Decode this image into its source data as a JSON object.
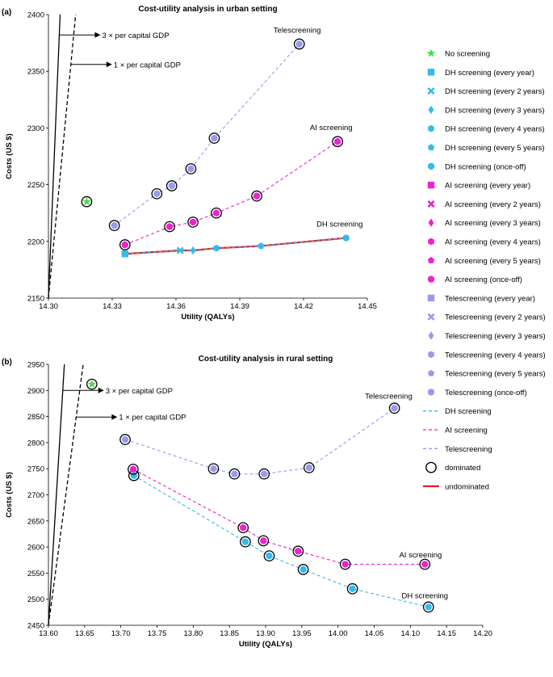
{
  "chart_data": [
    {
      "type": "line",
      "panel": "(a)",
      "title": "Cost-utility analysis in urban setting",
      "xlabel": "Utility (QALYs)",
      "ylabel": "Costs (US $)",
      "xlim": [
        14.3,
        14.45
      ],
      "ylim": [
        2150,
        2400
      ],
      "xticks": [
        14.3,
        14.33,
        14.36,
        14.39,
        14.42,
        14.45
      ],
      "xtick_labels": [
        "14.30",
        "14.33",
        "14.36",
        "14.39",
        "14.42",
        "14.45"
      ],
      "yticks": [
        2150,
        2200,
        2250,
        2300,
        2350,
        2400
      ],
      "ytick_labels": [
        "2150",
        "2200",
        "2250",
        "2300",
        "2350",
        "2400"
      ],
      "wtp_lines": [
        {
          "label": "3 × per capital GDP",
          "style": "solid",
          "x1": 14.3055,
          "label_y": 2382
        },
        {
          "label": "1 × per capital GDP",
          "style": "dashed",
          "x1": 14.3128,
          "label_y": 2356
        }
      ],
      "no_screening": {
        "x": 14.318,
        "y": 2235,
        "dominated": true
      },
      "series": [
        {
          "name": "DH screening",
          "label": "DH screening",
          "points": [
            [
              14.336,
              2189
            ],
            [
              14.362,
              2192
            ],
            [
              14.368,
              2192
            ],
            [
              14.379,
              2194
            ],
            [
              14.4,
              2196
            ],
            [
              14.44,
              2203
            ]
          ],
          "undominated": true
        },
        {
          "name": "AI screening",
          "label": "AI screening",
          "points": [
            [
              14.336,
              2197
            ],
            [
              14.357,
              2213
            ],
            [
              14.368,
              2217
            ],
            [
              14.379,
              2225
            ],
            [
              14.398,
              2240
            ],
            [
              14.436,
              2288
            ]
          ]
        },
        {
          "name": "Telescreening",
          "label": "Telescreening",
          "points": [
            [
              14.331,
              2214
            ],
            [
              14.351,
              2242
            ],
            [
              14.358,
              2249
            ],
            [
              14.367,
              2264
            ],
            [
              14.378,
              2291
            ],
            [
              14.418,
              2374
            ]
          ]
        }
      ],
      "annotations": [
        {
          "text": "Telescreening",
          "x": 14.417,
          "y": 2384
        },
        {
          "text": "AI screening",
          "x": 14.433,
          "y": 2298
        },
        {
          "text": "DH screening",
          "x": 14.437,
          "y": 2213
        }
      ]
    },
    {
      "type": "line",
      "panel": "(b)",
      "title": "Cost-utility analysis in rural setting",
      "xlabel": "Utility (QALYs)",
      "ylabel": "Costs (US $)",
      "xlim": [
        13.6,
        14.2
      ],
      "ylim": [
        2450,
        2950
      ],
      "xticks": [
        13.6,
        13.65,
        13.7,
        13.75,
        13.8,
        13.85,
        13.9,
        13.95,
        14.0,
        14.05,
        14.1,
        14.15,
        14.2
      ],
      "xtick_labels": [
        "13.60",
        "13.65",
        "13.70",
        "13.75",
        "13.80",
        "13.85",
        "13.90",
        "13.95",
        "14.00",
        "14.05",
        "14.10",
        "14.15",
        "14.20"
      ],
      "yticks": [
        2450,
        2500,
        2550,
        2600,
        2650,
        2700,
        2750,
        2800,
        2850,
        2900,
        2950
      ],
      "ytick_labels": [
        "2450",
        "2500",
        "2550",
        "2600",
        "2650",
        "2700",
        "2750",
        "2800",
        "2850",
        "2900",
        "2950"
      ],
      "wtp_lines": [
        {
          "label": "3 × per capital GDP",
          "style": "solid",
          "x1": 13.622,
          "label_y": 2900
        },
        {
          "label": "1 × per capital GDP",
          "style": "dashed",
          "x1": 13.648,
          "label_y": 2849
        }
      ],
      "no_screening": {
        "x": 13.66,
        "y": 2912,
        "dominated": true
      },
      "series": [
        {
          "name": "DH screening",
          "label": "DH screening",
          "points": [
            [
              13.718,
              2737
            ],
            [
              13.872,
              2610
            ],
            [
              13.905,
              2583
            ],
            [
              13.952,
              2557
            ],
            [
              14.02,
              2520
            ],
            [
              14.125,
              2485
            ]
          ]
        },
        {
          "name": "AI screening",
          "label": "AI screening",
          "points": [
            [
              13.717,
              2749
            ],
            [
              13.869,
              2637
            ],
            [
              13.897,
              2612
            ],
            [
              13.945,
              2592
            ],
            [
              14.01,
              2567
            ],
            [
              14.12,
              2567
            ]
          ]
        },
        {
          "name": "Telescreening",
          "label": "Telescreening",
          "points": [
            [
              13.706,
              2806
            ],
            [
              13.828,
              2750
            ],
            [
              13.857,
              2740
            ],
            [
              13.898,
              2740
            ],
            [
              13.96,
              2752
            ],
            [
              14.078,
              2866
            ]
          ]
        }
      ],
      "annotations": [
        {
          "text": "Telescreening",
          "x": 14.07,
          "y": 2884
        },
        {
          "text": "AI screening",
          "x": 14.114,
          "y": 2580
        },
        {
          "text": "DH screening",
          "x": 14.12,
          "y": 2502
        }
      ]
    }
  ],
  "legend": {
    "items": [
      {
        "label": "No screening",
        "marker": "star",
        "color": "#44dd44"
      },
      {
        "label": "DH screening (every year)",
        "marker": "square",
        "color": "#33bbee"
      },
      {
        "label": "DH screening (every 2 years)",
        "marker": "x",
        "color": "#33bbee"
      },
      {
        "label": "DH screening (every 3 years)",
        "marker": "diamond",
        "color": "#33bbee"
      },
      {
        "label": "DH screening (every 4 years)",
        "marker": "hexagon",
        "color": "#33bbee"
      },
      {
        "label": "DH screening (every 5 years)",
        "marker": "pentagon",
        "color": "#33bbee"
      },
      {
        "label": "DH screening (once-off)",
        "marker": "circle",
        "color": "#33bbee"
      },
      {
        "label": "AI screening (every year)",
        "marker": "square",
        "color": "#ee22cc"
      },
      {
        "label": "AI screening (every 2 years)",
        "marker": "x",
        "color": "#ee22cc"
      },
      {
        "label": "AI screening (every 3 years)",
        "marker": "diamond",
        "color": "#ee22cc"
      },
      {
        "label": "AI screening (every 4 years)",
        "marker": "hexagon",
        "color": "#ee22cc"
      },
      {
        "label": "AI screening (every 5 years)",
        "marker": "pentagon",
        "color": "#ee22cc"
      },
      {
        "label": "AI screening (once-off)",
        "marker": "circle",
        "color": "#ee22cc"
      },
      {
        "label": "Telescreening (every year)",
        "marker": "square",
        "color": "#9999ee"
      },
      {
        "label": "Telescreening (every 2 years)",
        "marker": "x",
        "color": "#9999ee"
      },
      {
        "label": "Telescreening (every 3 years)",
        "marker": "diamond",
        "color": "#9999ee"
      },
      {
        "label": "Telescreening (every 4 years)",
        "marker": "hexagon",
        "color": "#9999ee"
      },
      {
        "label": "Telescreening (every 5 years)",
        "marker": "pentagon",
        "color": "#9999ee"
      },
      {
        "label": "Telescreening (once-off)",
        "marker": "circle",
        "color": "#9999ee"
      },
      {
        "label": "DH screening",
        "marker": "dashed-line",
        "color": "#33bbee"
      },
      {
        "label": "AI screening",
        "marker": "dashed-line",
        "color": "#ee22cc"
      },
      {
        "label": "Telescreening",
        "marker": "dashed-line",
        "color": "#9999ee"
      },
      {
        "label": "dominated",
        "marker": "open-circle",
        "color": "#000000"
      },
      {
        "label": "undominated",
        "marker": "solid-line",
        "color": "#e02020"
      }
    ]
  },
  "colors": {
    "dh": "#33bbee",
    "ai": "#ee22cc",
    "tele": "#9999ee",
    "no_screening": "#44dd44",
    "undominated": "#e02020"
  }
}
